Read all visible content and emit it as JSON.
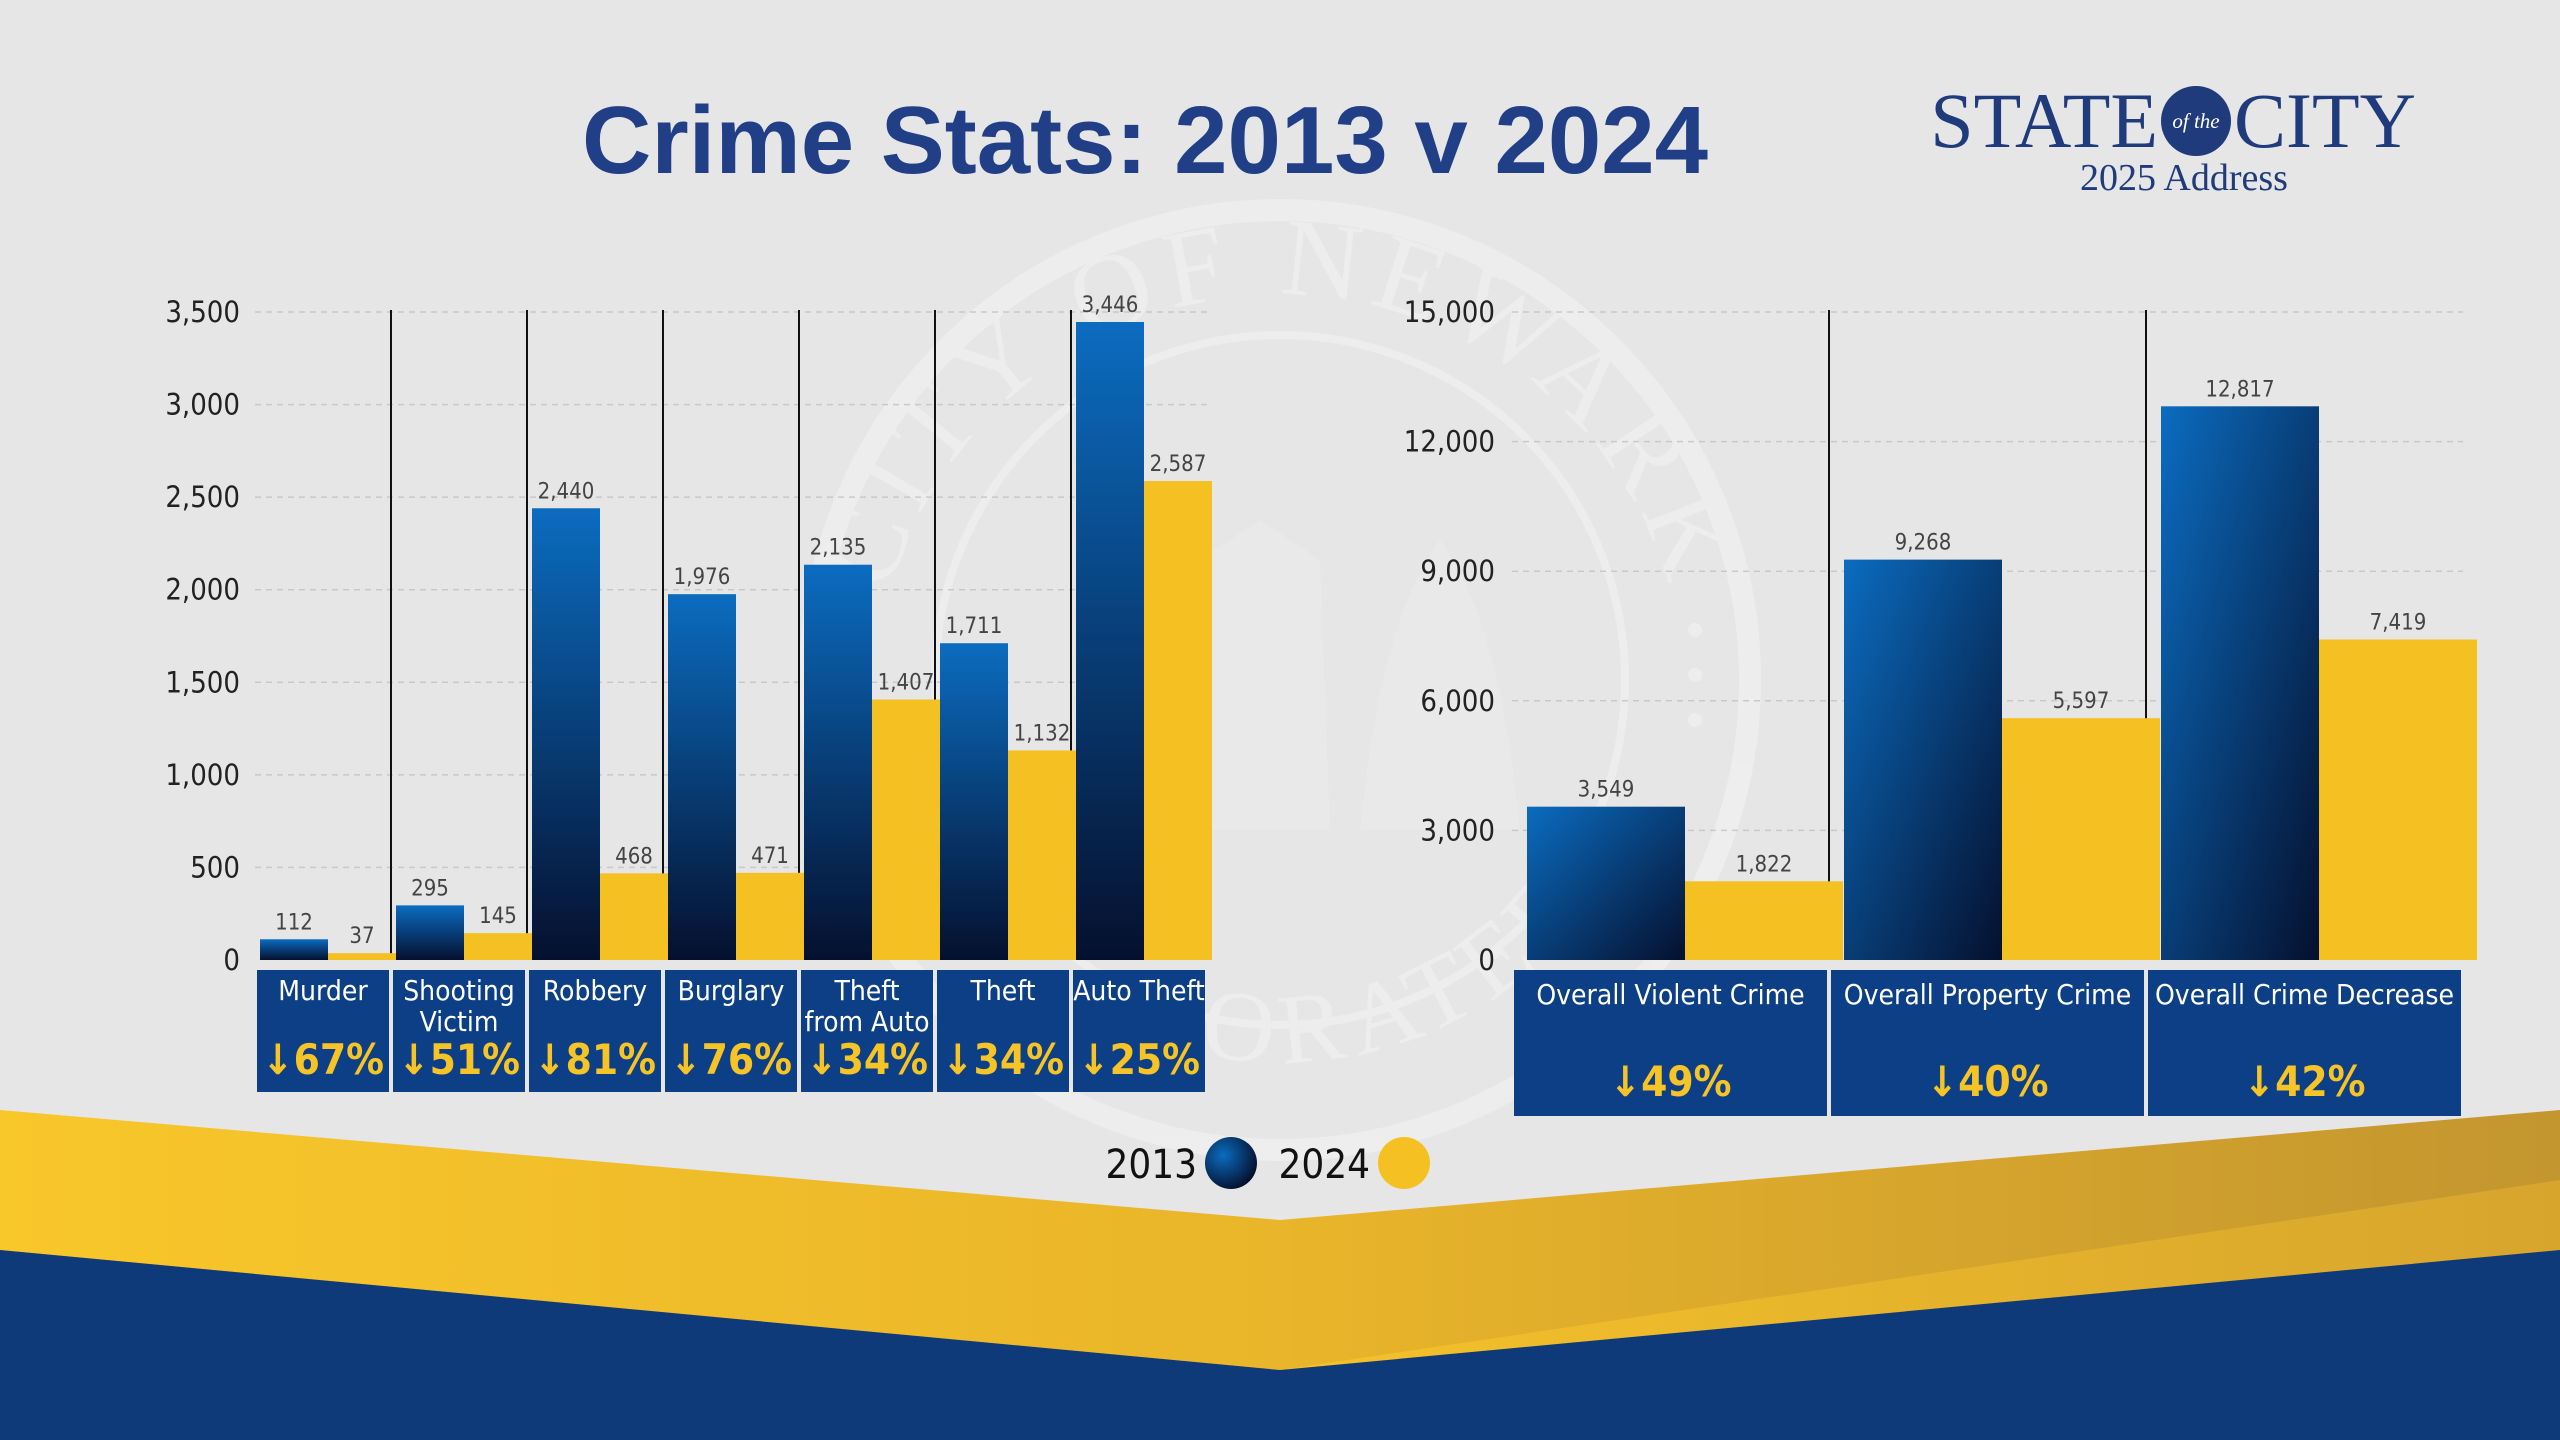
{
  "title": "Crime Stats: 2013 v 2024",
  "logo": {
    "state": "STATE",
    "of_the": "of the",
    "city": "CITY",
    "address": "2025 Address"
  },
  "seal": {
    "top": "CITY OF NEWARK",
    "bottom": "ORATED"
  },
  "legend": [
    "2013",
    "2024"
  ],
  "colors": {
    "y2013_top": "#0b6cc0",
    "y2013_bottom": "#05102e",
    "y2024": "#f5c022",
    "label_box": "#0d3f86",
    "pct_text": "#f6c427",
    "title": "#203f86"
  },
  "chart_data": [
    {
      "type": "bar",
      "categories": [
        "Murder",
        "Shooting Victim",
        "Robbery",
        "Burglary",
        "Theft from Auto",
        "Theft",
        "Auto Theft"
      ],
      "category_lines": [
        [
          "Murder"
        ],
        [
          "Shooting",
          "Victim"
        ],
        [
          "Robbery"
        ],
        [
          "Burglary"
        ],
        [
          "Theft",
          "from Auto"
        ],
        [
          "Theft"
        ],
        [
          "Auto Theft"
        ]
      ],
      "series": [
        {
          "name": "2013",
          "values": [
            112,
            295,
            2440,
            1976,
            2135,
            1711,
            3446
          ],
          "labels": [
            "112",
            "295",
            "2,440",
            "1,976",
            "2,135",
            "1,711",
            "3,446"
          ]
        },
        {
          "name": "2024",
          "values": [
            37,
            145,
            468,
            471,
            1407,
            1132,
            2587
          ],
          "labels": [
            "37",
            "145",
            "468",
            "471",
            "1,407",
            "1,132",
            "2,587"
          ]
        }
      ],
      "change_labels": [
        "↓67%",
        "↓51%",
        "↓81%",
        "↓76%",
        "↓34%",
        "↓34%",
        "↓25%"
      ],
      "ylim": [
        0,
        3500
      ],
      "yticks": [
        0,
        500,
        1000,
        1500,
        2000,
        2500,
        3000,
        3500
      ],
      "ytick_labels": [
        "0",
        "500",
        "1,000",
        "1,500",
        "2,000",
        "2,500",
        "3,000",
        "3,500"
      ],
      "grid": true
    },
    {
      "type": "bar",
      "categories": [
        "Overall Violent Crime",
        "Overall Property Crime",
        "Overall Crime Decrease"
      ],
      "category_lines": [
        [
          "Overall Violent Crime"
        ],
        [
          "Overall Property Crime"
        ],
        [
          "Overall Crime Decrease"
        ]
      ],
      "series": [
        {
          "name": "2013",
          "values": [
            3549,
            9268,
            12817
          ],
          "labels": [
            "3,549",
            "9,268",
            "12,817"
          ]
        },
        {
          "name": "2024",
          "values": [
            1822,
            5597,
            7419
          ],
          "labels": [
            "1,822",
            "5,597",
            "7,419"
          ]
        }
      ],
      "change_labels": [
        "↓49%",
        "↓40%",
        "↓42%"
      ],
      "ylim": [
        0,
        15000
      ],
      "yticks": [
        0,
        3000,
        6000,
        9000,
        12000,
        15000
      ],
      "ytick_labels": [
        "0",
        "3,000",
        "6,000",
        "9,000",
        "12,000",
        "15,000"
      ],
      "grid": true
    }
  ]
}
